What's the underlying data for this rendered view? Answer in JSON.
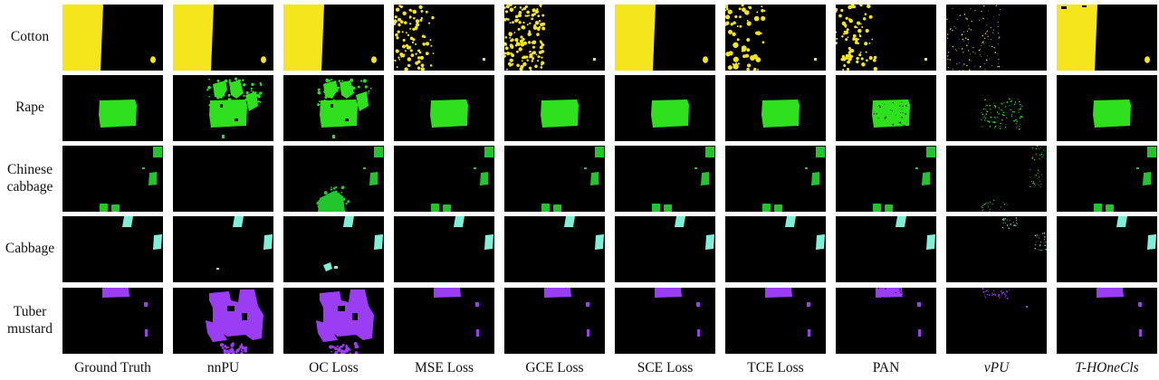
{
  "rows": [
    {
      "key": "cotton",
      "label": [
        "Cotton"
      ],
      "color": "#f5e61c"
    },
    {
      "key": "rape",
      "label": [
        "Rape"
      ],
      "color": "#2fe01c"
    },
    {
      "key": "chinese-cabbage",
      "label": [
        "Chinese",
        "cabbage"
      ],
      "color": "#23c52d"
    },
    {
      "key": "cabbage",
      "label": [
        "Cabbage"
      ],
      "color": "#7ff0d6"
    },
    {
      "key": "tuber-mustard",
      "label": [
        "Tuber",
        "mustard"
      ],
      "color": "#9b3df2"
    }
  ],
  "columns": [
    {
      "key": "ground-truth",
      "label": "Ground Truth",
      "italic": false
    },
    {
      "key": "nnpu",
      "label": "nnPU",
      "italic": false
    },
    {
      "key": "oc-loss",
      "label": "OC Loss",
      "italic": false
    },
    {
      "key": "mse-loss",
      "label": "MSE Loss",
      "italic": false
    },
    {
      "key": "gce-loss",
      "label": "GCE Loss",
      "italic": false
    },
    {
      "key": "sce-loss",
      "label": "SCE Loss",
      "italic": false
    },
    {
      "key": "tce-loss",
      "label": "TCE Loss",
      "italic": false
    },
    {
      "key": "pan",
      "label": "PAN",
      "italic": false
    },
    {
      "key": "vpu",
      "label": "vPU",
      "italic": true
    },
    {
      "key": "t-honecls",
      "label": "T-HOneCls",
      "italic": true
    }
  ],
  "background_color": "#000000"
}
